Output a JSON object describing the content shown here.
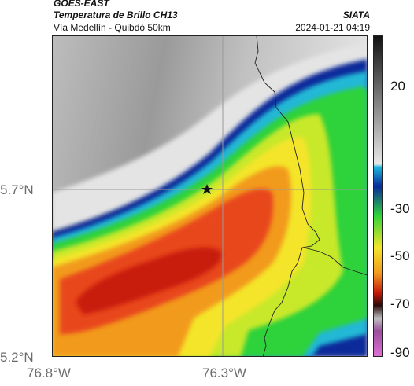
{
  "header": {
    "satellite": "GOES-EAST",
    "product": "Temperatura de Brillo CH13",
    "area": "Vía Medellín - Quibdó 50km",
    "agency": "SIATA",
    "datetime": "2024-01-21 04:19"
  },
  "axes": {
    "y_ticks": [
      "5.7°N",
      "5.2°N"
    ],
    "x_ticks": [
      "76.8°W",
      "76.3°W"
    ]
  },
  "colorbar": {
    "ticks": [
      "20",
      "-30",
      "-50",
      "-70",
      "-90"
    ],
    "unit_note": ""
  },
  "legend_marker": {
    "icon": "star-icon"
  },
  "colors": {
    "cold_core": "#c81a0a",
    "warm_ground": "#d8d8d8",
    "grid": "#9a9a9a",
    "border": "#222222"
  }
}
